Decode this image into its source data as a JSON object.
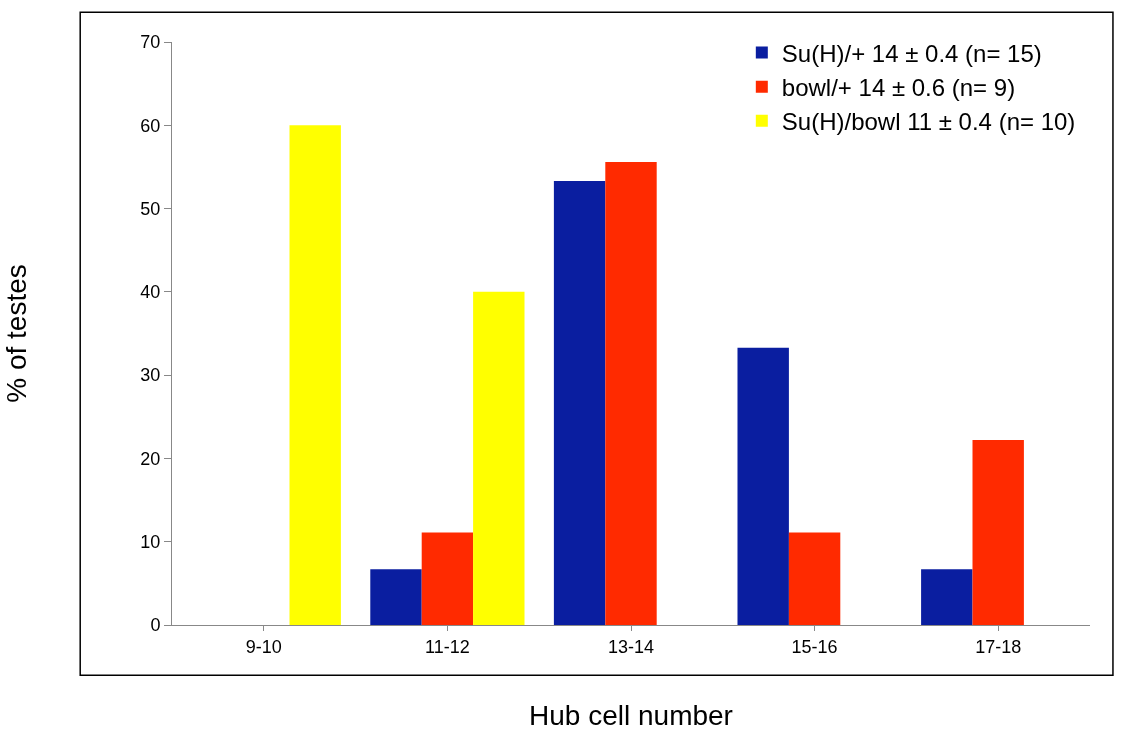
{
  "chart_data": {
    "type": "bar",
    "xlabel": "Hub cell number",
    "ylabel": "% of testes",
    "categories": [
      "9-10",
      "11-12",
      "13-14",
      "15-16",
      "17-18"
    ],
    "series": [
      {
        "name": "Su(H)/+ 14 ± 0.4 (n= 15)",
        "color": "#0a1ea0",
        "values": [
          0,
          6.7,
          53.3,
          33.3,
          6.7
        ]
      },
      {
        "name": "bowl/+ 14 ± 0.6 (n= 9)",
        "color": "#ff2a00",
        "values": [
          0,
          11.1,
          55.6,
          11.1,
          22.2
        ]
      },
      {
        "name": "Su(H)/bowl 11 ± 0.4 (n= 10)",
        "color": "#ffff00",
        "values": [
          60,
          40,
          0,
          0,
          0
        ]
      }
    ],
    "ylim": [
      0,
      70
    ],
    "yticks": [
      0,
      10,
      20,
      30,
      40,
      50,
      60,
      70
    ],
    "grid": false,
    "legend": "top right"
  }
}
